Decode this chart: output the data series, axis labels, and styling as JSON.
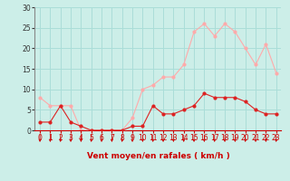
{
  "title": "",
  "xlabel": "Vent moyen/en rafales ( km/h )",
  "ylabel": "",
  "bg_color": "#cceee8",
  "grid_color": "#aaddd8",
  "line1_color": "#dd2222",
  "line2_color": "#ffaaaa",
  "x": [
    0,
    1,
    2,
    3,
    4,
    5,
    6,
    7,
    8,
    9,
    10,
    11,
    12,
    13,
    14,
    15,
    16,
    17,
    18,
    19,
    20,
    21,
    22,
    23
  ],
  "y_mean": [
    2,
    2,
    6,
    2,
    1,
    0,
    0,
    0,
    0,
    1,
    1,
    6,
    4,
    4,
    5,
    6,
    9,
    8,
    8,
    8,
    7,
    5,
    4,
    4
  ],
  "y_gust": [
    8,
    6,
    6,
    6,
    0,
    0,
    0,
    0,
    0,
    3,
    10,
    11,
    13,
    13,
    16,
    24,
    26,
    23,
    26,
    24,
    20,
    16,
    21,
    14
  ],
  "ylim": [
    0,
    30
  ],
  "xlim": [
    -0.5,
    23.5
  ],
  "yticks": [
    0,
    5,
    10,
    15,
    20,
    25,
    30
  ],
  "xticks": [
    0,
    1,
    2,
    3,
    4,
    5,
    6,
    7,
    8,
    9,
    10,
    11,
    12,
    13,
    14,
    15,
    16,
    17,
    18,
    19,
    20,
    21,
    22,
    23
  ]
}
